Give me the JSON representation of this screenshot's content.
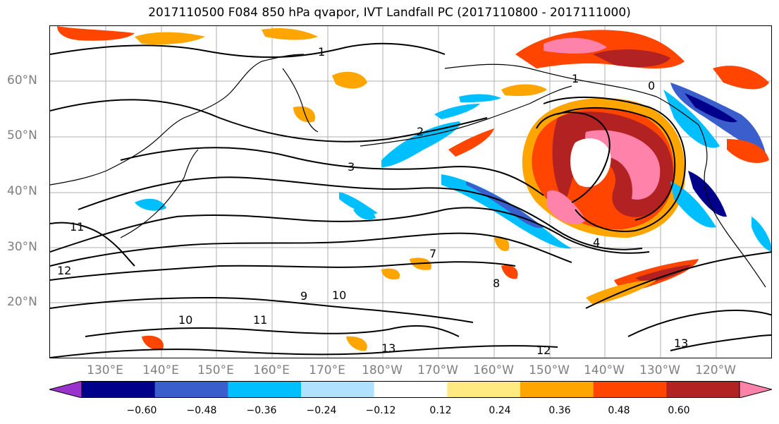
{
  "title": "2017110500 F084 850 hPa qvapor, IVT Landfall PC (2017110800 - 2017111000)",
  "latitude_labels": [
    "60°N",
    "50°N",
    "40°N",
    "30°N",
    "20°N"
  ],
  "longitude_labels": [
    "130°E",
    "140°E",
    "150°E",
    "160°E",
    "170°E",
    "180°W",
    "170°W",
    "160°W",
    "150°W",
    "140°W",
    "130°W",
    "120°W"
  ],
  "contour_labels": [
    "1",
    "2",
    "3",
    "9",
    "10",
    "11",
    "12",
    "13",
    "0",
    "1",
    "4",
    "7",
    "8",
    "10",
    "11",
    "12",
    "13"
  ],
  "colorbar": {
    "tick_labels": [
      "−0.60",
      "−0.48",
      "−0.36",
      "−0.24",
      "−0.12",
      "0.12",
      "0.24",
      "0.36",
      "0.48",
      "0.60"
    ],
    "colors": [
      "#9a32cd",
      "#00008b",
      "#3a5fcd",
      "#00bfff",
      "#b0e2ff",
      "#ffffff",
      "#ffe980",
      "#ffa500",
      "#ff4500",
      "#b22222",
      "#ff82ab"
    ]
  }
}
